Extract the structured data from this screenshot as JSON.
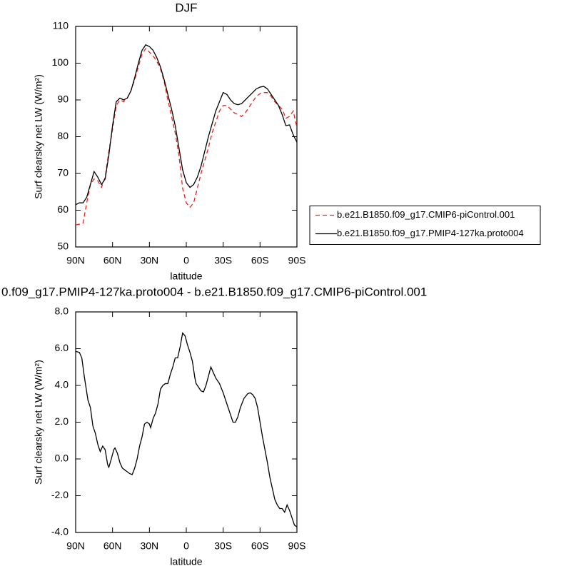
{
  "chart_data": [
    {
      "type": "line",
      "title": "DJF",
      "xlabel": "latitude",
      "ylabel": "Surf clearsky net LW (W/m²)",
      "xlim": [
        90,
        -90
      ],
      "xticks": [
        {
          "value": 90,
          "label": "90N"
        },
        {
          "value": 60,
          "label": "60N"
        },
        {
          "value": 30,
          "label": "30N"
        },
        0,
        {
          "value": -30,
          "label": "30S"
        },
        {
          "value": -60,
          "label": "60S"
        },
        {
          "value": -90,
          "label": "90S"
        }
      ],
      "ylim": [
        50,
        110
      ],
      "yticks": [
        50,
        60,
        70,
        80,
        90,
        100,
        110
      ],
      "legend": "right",
      "x": [
        90,
        87,
        84,
        81,
        78,
        75,
        72,
        69,
        66,
        63,
        60,
        57,
        54,
        51,
        48,
        45,
        42,
        39,
        36,
        33,
        30,
        27,
        24,
        21,
        18,
        15,
        12,
        9,
        6,
        3,
        0,
        -3,
        -6,
        -9,
        -12,
        -15,
        -18,
        -21,
        -24,
        -27,
        -30,
        -33,
        -36,
        -39,
        -42,
        -45,
        -48,
        -51,
        -54,
        -57,
        -60,
        -63,
        -66,
        -69,
        -72,
        -75,
        -78,
        -81,
        -84,
        -87,
        -90
      ],
      "series": [
        {
          "name": "b.e21.B1850.f09_g17.CMIP6-piControl.001",
          "color": "#e8231f",
          "line_style": "dashed",
          "values": [
            56,
            56.2,
            56.5,
            62,
            67,
            68.5,
            68,
            66.2,
            69,
            76,
            82,
            88.5,
            90,
            89.5,
            90.5,
            92.5,
            95.5,
            99,
            102.5,
            104,
            103,
            102,
            100.5,
            98.5,
            95,
            90,
            85.5,
            81,
            75,
            66,
            62,
            60.8,
            62,
            66,
            70,
            73.5,
            77,
            81,
            84,
            87,
            88.5,
            88.5,
            87.5,
            86.5,
            86,
            85.5,
            86.5,
            88,
            89.5,
            91,
            91.7,
            92,
            92,
            91,
            89.5,
            88.5,
            87.5,
            85,
            85.5,
            87,
            82.5
          ]
        },
        {
          "name": "b.e21.B1850.f09_g17.PMIP4-127ka.proto004",
          "color": "#000000",
          "line_style": "solid",
          "values": [
            61.5,
            62,
            62,
            63.5,
            67,
            70.5,
            69,
            67,
            68.5,
            75,
            83,
            89.5,
            90.5,
            90,
            90.5,
            92.5,
            96,
            100,
            103.5,
            105,
            104.5,
            103.5,
            101.5,
            99,
            95.5,
            91.5,
            87.5,
            83,
            77,
            71,
            67.5,
            66.2,
            67,
            69,
            72,
            76,
            80,
            83.5,
            87,
            89.5,
            92,
            91.5,
            90,
            89,
            88.7,
            89,
            90,
            91,
            92,
            93,
            93.5,
            93.7,
            93,
            91.5,
            90,
            88.5,
            86,
            83,
            83.2,
            80.5,
            78.5
          ]
        }
      ]
    },
    {
      "type": "line",
      "title": "0.f09_g17.PMIP4-127ka.proto004 - b.e21.B1850.f09_g17.CMIP6-piControl.001",
      "xlabel": "latitude",
      "ylabel": "Surf clearsky net LW (W/m²)",
      "xlim": [
        90,
        -90
      ],
      "xticks": [
        {
          "value": 90,
          "label": "90N"
        },
        {
          "value": 60,
          "label": "60N"
        },
        {
          "value": 30,
          "label": "30N"
        },
        0,
        {
          "value": -30,
          "label": "30S"
        },
        {
          "value": -60,
          "label": "60S"
        },
        {
          "value": -90,
          "label": "90S"
        }
      ],
      "ylim": [
        -4,
        8
      ],
      "yticks": [
        {
          "value": -4,
          "label": "-4.0"
        },
        {
          "value": -2,
          "label": "-2.0"
        },
        {
          "value": 0,
          "label": "0.0"
        },
        {
          "value": 2,
          "label": "2.0"
        },
        {
          "value": 4,
          "label": "4.0"
        },
        {
          "value": 6,
          "label": "6.0"
        },
        {
          "value": 8,
          "label": "8.0"
        }
      ],
      "x": [
        90,
        87,
        85,
        83,
        80,
        78,
        76,
        74,
        72,
        70,
        68,
        66,
        64,
        63,
        61,
        59,
        58,
        56,
        54,
        52,
        50,
        48,
        46,
        44,
        42,
        40,
        38,
        36,
        34,
        32,
        30,
        29,
        27,
        25,
        23,
        21,
        19,
        17,
        15,
        13,
        11,
        9,
        7,
        5,
        3,
        1,
        -1,
        -3,
        -5,
        -7,
        -8,
        -10,
        -12,
        -14,
        -16,
        -18,
        -20,
        -22,
        -24,
        -27,
        -30,
        -33,
        -36,
        -38,
        -40,
        -42,
        -44,
        -47,
        -50,
        -52,
        -54,
        -56,
        -58,
        -60,
        -62,
        -64,
        -66,
        -68,
        -70,
        -72,
        -74,
        -76,
        -78,
        -80,
        -82,
        -84,
        -86,
        -88,
        -90
      ],
      "series": [
        {
          "color": "#000000",
          "line_style": "solid",
          "values": [
            5.85,
            5.8,
            5.5,
            4.5,
            3.2,
            2.8,
            1.8,
            1.4,
            0.8,
            0.4,
            0.7,
            0.5,
            -0.3,
            -0.45,
            0,
            0.5,
            0.6,
            0.3,
            -0.2,
            -0.5,
            -0.6,
            -0.7,
            -0.8,
            -0.85,
            -0.5,
            0,
            0.7,
            1.2,
            1.9,
            2,
            1.9,
            1.7,
            2.2,
            2.5,
            3,
            3.8,
            4,
            4.1,
            4.1,
            4.6,
            5,
            5.5,
            5.5,
            6.1,
            6.85,
            6.7,
            6.2,
            5.8,
            5.3,
            4.4,
            4.1,
            3.9,
            3.7,
            3.65,
            4,
            4.5,
            5,
            4.7,
            4.4,
            4.1,
            3.6,
            3,
            2.4,
            2,
            2,
            2.3,
            2.8,
            3.3,
            3.55,
            3.6,
            3.5,
            3.3,
            2.8,
            2,
            1.2,
            0.5,
            -0.2,
            -1,
            -1.6,
            -2.2,
            -2.5,
            -2.7,
            -2.7,
            -2.9,
            -2.5,
            -2.8,
            -3.2,
            -3.6,
            -3.7
          ]
        }
      ]
    }
  ]
}
